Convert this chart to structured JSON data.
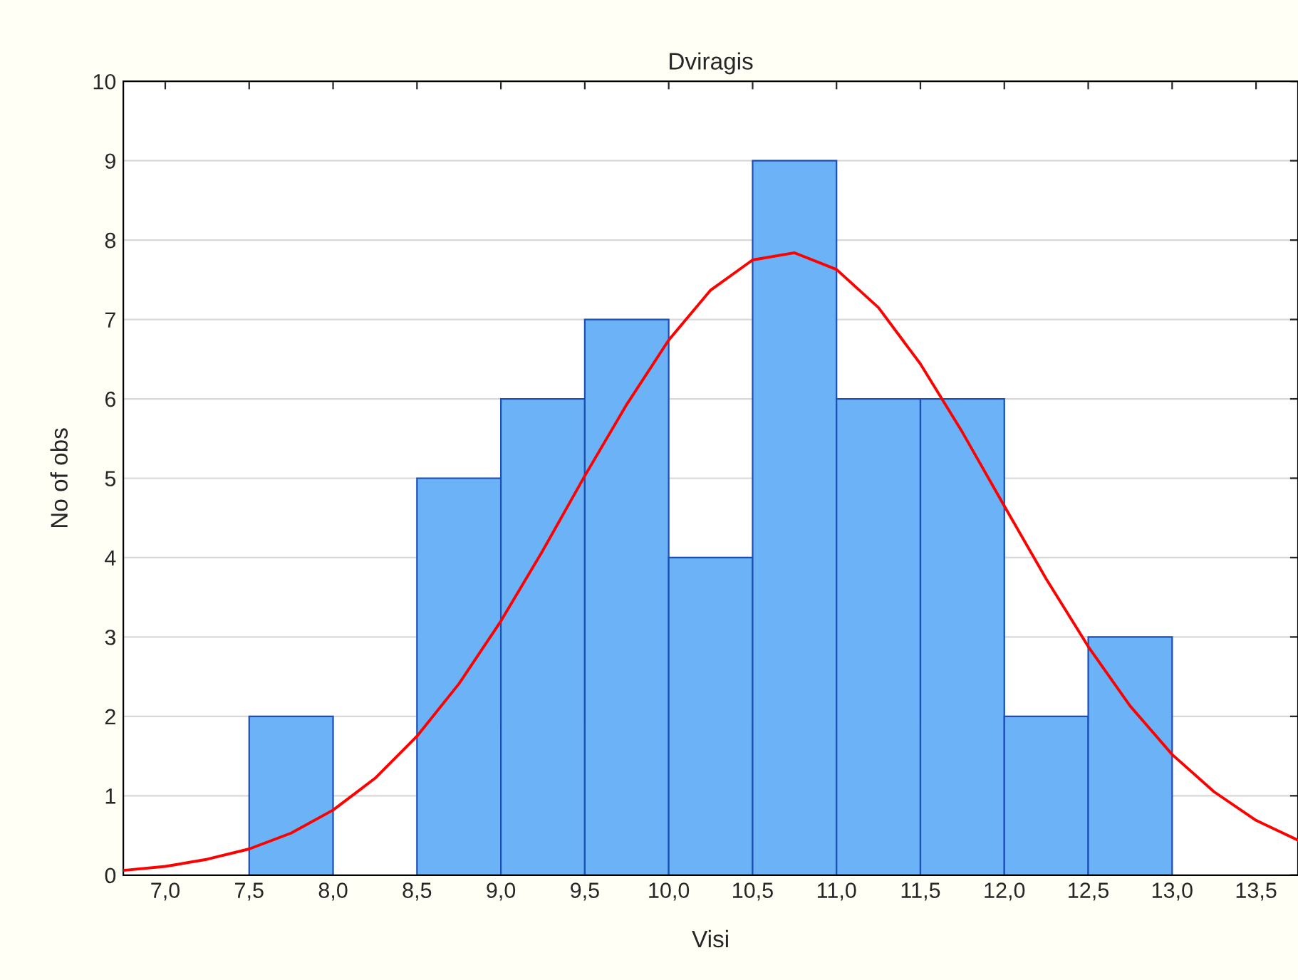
{
  "chart_data": {
    "type": "histogram",
    "title": "Dviragis",
    "xlabel": "Visi",
    "ylabel": "No of obs",
    "bins": [
      7.5,
      8.0,
      8.5,
      9.0,
      9.5,
      10.0,
      10.5,
      11.0,
      11.5,
      12.0,
      12.5,
      13.0
    ],
    "series": [
      {
        "color": "#6cb2f6",
        "values": [
          2,
          0,
          5,
          6,
          7,
          4,
          9,
          6,
          6,
          2,
          3
        ]
      },
      {
        "type": "line",
        "color": "#ff0000",
        "x": [
          6.75,
          7.0,
          7.25,
          7.5,
          7.75,
          8.0,
          8.25,
          8.5,
          8.75,
          9.0,
          9.25,
          9.5,
          9.75,
          10.0,
          10.25,
          10.5,
          10.75,
          11.0,
          11.25,
          11.5,
          11.75,
          12.0,
          12.25,
          12.5,
          12.75,
          13.0,
          13.25,
          13.5,
          13.75
        ],
        "values": [
          0.06,
          0.11,
          0.2,
          0.33,
          0.53,
          0.82,
          1.22,
          1.75,
          2.41,
          3.2,
          4.09,
          5.03,
          5.93,
          6.74,
          7.37,
          7.75,
          7.84,
          7.63,
          7.15,
          6.44,
          5.58,
          4.65,
          3.73,
          2.88,
          2.13,
          1.52,
          1.05,
          0.69,
          0.44
        ]
      }
    ],
    "xlim": [
      6.75,
      13.75
    ],
    "xticks": [
      {
        "value": 7.0,
        "label": "7,0"
      },
      {
        "value": 7.5,
        "label": "7,5"
      },
      {
        "value": 8.0,
        "label": "8,0"
      },
      {
        "value": 8.5,
        "label": "8,5"
      },
      {
        "value": 9.0,
        "label": "9,0"
      },
      {
        "value": 9.5,
        "label": "9,5"
      },
      {
        "value": 10.0,
        "label": "10,0"
      },
      {
        "value": 10.5,
        "label": "10,5"
      },
      {
        "value": 11.0,
        "label": "11,0"
      },
      {
        "value": 11.5,
        "label": "11,5"
      },
      {
        "value": 12.0,
        "label": "12,0"
      },
      {
        "value": 12.5,
        "label": "12,5"
      },
      {
        "value": 13.0,
        "label": "13,0"
      },
      {
        "value": 13.5,
        "label": "13,5"
      }
    ],
    "ylim": [
      0,
      10
    ],
    "yticks": [
      0,
      1,
      2,
      3,
      4,
      5,
      6,
      7,
      8,
      9,
      10
    ],
    "grid": "y",
    "legend": false
  }
}
